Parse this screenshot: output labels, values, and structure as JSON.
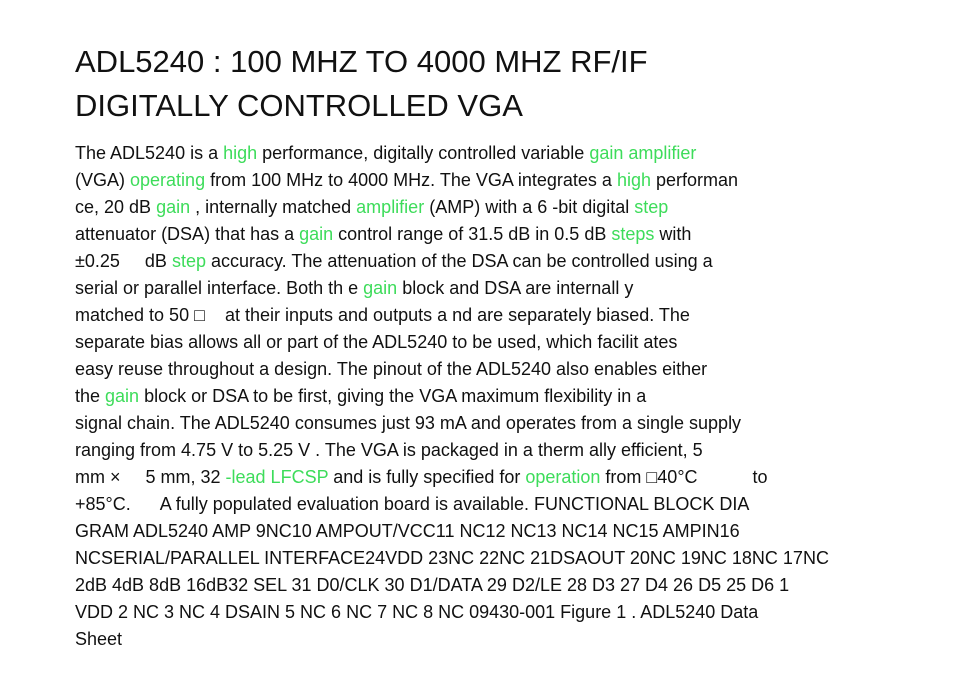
{
  "document": {
    "title_lines": [
      "ADL5240 : 100 MHZ TO 4000 MHZ RF/IF",
      "DIGITALLY CONTROLLED VGA"
    ],
    "highlight_color": "#3ddc5a",
    "text_color": "#111111",
    "body_lines": [
      [
        {
          "t": "The ADL5240 is a "
        },
        {
          "t": "high",
          "hl": true
        },
        {
          "t": " performance, digitally controlled variable "
        },
        {
          "t": "gain amplifier",
          "hl": true
        }
      ],
      [
        {
          "t": "(VGA) "
        },
        {
          "t": "operating",
          "hl": true
        },
        {
          "t": " from 100 MHz to 4000 MHz. The VGA integrates a "
        },
        {
          "t": "high",
          "hl": true
        },
        {
          "t": " performan"
        }
      ],
      [
        {
          "t": "ce, 20 dB "
        },
        {
          "t": "gain",
          "hl": true
        },
        {
          "t": " , internally matched "
        },
        {
          "t": "amplifier",
          "hl": true
        },
        {
          "t": " (AMP) with a 6 -bit digital "
        },
        {
          "t": "step",
          "hl": true
        }
      ],
      [
        {
          "t": "attenuator (DSA) that has a "
        },
        {
          "t": "gain",
          "hl": true
        },
        {
          "t": " control range of 31.5 dB in 0.5 dB "
        },
        {
          "t": "steps",
          "hl": true
        },
        {
          "t": " with"
        }
      ],
      [
        {
          "t": "±0.25     dB "
        },
        {
          "t": "step",
          "hl": true
        },
        {
          "t": " accuracy. The attenuation of the DSA can be controlled using a"
        }
      ],
      [
        {
          "t": "serial or parallel interface. Both th e "
        },
        {
          "t": "gain",
          "hl": true
        },
        {
          "t": " block and DSA are internall y"
        }
      ],
      [
        {
          "t": "matched to 50 □    at their inputs and outputs a nd are separately biased. The"
        }
      ],
      [
        {
          "t": "separate bias allows all or part of the ADL5240 to be used, which facilit ates"
        }
      ],
      [
        {
          "t": "easy reuse throughout a design. The pinout of the ADL5240 also enables either"
        }
      ],
      [
        {
          "t": "the "
        },
        {
          "t": "gain",
          "hl": true
        },
        {
          "t": " block or DSA to be first, giving the VGA maximum flexibility in a"
        }
      ],
      [
        {
          "t": "signal chain. The ADL5240 consumes just 93 mA and operates from a single supply"
        }
      ],
      [
        {
          "t": "ranging from 4.75 V to 5.25 V . The VGA is packaged in a therm ally efficient, 5"
        }
      ],
      [
        {
          "t": "mm ×     5 mm, 32 "
        },
        {
          "t": "-lead LFCSP",
          "hl": true
        },
        {
          "t": " and is fully specified for "
        },
        {
          "t": "operation",
          "hl": true
        },
        {
          "t": " from □40°C           to"
        }
      ],
      [
        {
          "t": "+85°C.      A fully populated evaluation board is available. FUNCTIONAL BLOCK DIA"
        }
      ],
      [
        {
          "t": "GRAM ADL5240 AMP 9NC10 AMPOUT/VCC11 NC12 NC13 NC14 NC15 AMPIN16"
        }
      ],
      [
        {
          "t": "NCSERIAL/PARALLEL INTERFACE24VDD 23NC 22NC 21DSAOUT 20NC 19NC 18NC 17NC"
        }
      ],
      [
        {
          "t": "2dB 4dB 8dB 16dB32 SEL 31 D0/CLK 30 D1/DATA 29 D2/LE 28 D3 27 D4 26 D5 25 D6 1"
        }
      ],
      [
        {
          "t": "VDD 2 NC 3 NC 4 DSAIN 5 NC 6 NC 7 NC 8 NC 09430-001 Figure 1 . ADL5240 Data"
        }
      ],
      [
        {
          "t": "Sheet"
        }
      ]
    ]
  }
}
